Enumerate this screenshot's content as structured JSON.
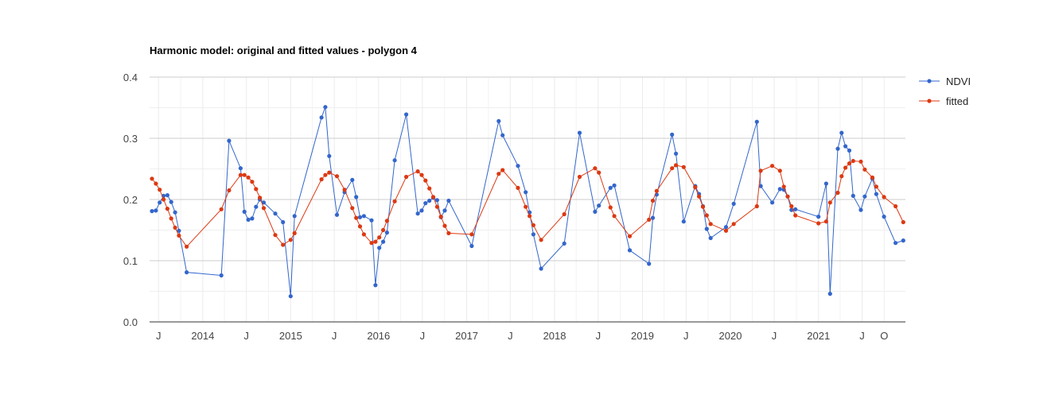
{
  "chart_data": {
    "type": "line",
    "title": "Harmonic model: original and fitted values - polygon 4",
    "xlabel": "",
    "ylabel": "",
    "xlim": [
      "2013-05-25",
      "2021-12-28"
    ],
    "ylim": [
      0,
      0.4
    ],
    "yticks": [
      "0.0",
      "0.1",
      "0.2",
      "0.3",
      "0.4"
    ],
    "xticks": [
      {
        "date": "2013-07-01",
        "label": "J"
      },
      {
        "date": "2014-01-01",
        "label": "2014"
      },
      {
        "date": "2014-07-01",
        "label": "J"
      },
      {
        "date": "2015-01-01",
        "label": "2015"
      },
      {
        "date": "2015-07-01",
        "label": "J"
      },
      {
        "date": "2016-01-01",
        "label": "2016"
      },
      {
        "date": "2016-07-01",
        "label": "J"
      },
      {
        "date": "2017-01-01",
        "label": "2017"
      },
      {
        "date": "2017-07-01",
        "label": "J"
      },
      {
        "date": "2018-01-01",
        "label": "2018"
      },
      {
        "date": "2018-07-01",
        "label": "J"
      },
      {
        "date": "2019-01-01",
        "label": "2019"
      },
      {
        "date": "2019-07-01",
        "label": "J"
      },
      {
        "date": "2020-01-01",
        "label": "2020"
      },
      {
        "date": "2020-07-01",
        "label": "J"
      },
      {
        "date": "2021-01-01",
        "label": "2021"
      },
      {
        "date": "2021-07-01",
        "label": "J"
      },
      {
        "date": "2021-10-01",
        "label": "O"
      }
    ],
    "grid": true,
    "legend_position": "right",
    "series": [
      {
        "name": "NDVI",
        "color": "#3366cc",
        "points": [
          [
            "2013-06-04",
            0.181
          ],
          [
            "2013-06-20",
            0.182
          ],
          [
            "2013-07-06",
            0.195
          ],
          [
            "2013-07-22",
            0.206
          ],
          [
            "2013-08-07",
            0.207
          ],
          [
            "2013-08-23",
            0.196
          ],
          [
            "2013-09-08",
            0.179
          ],
          [
            "2013-09-24",
            0.149
          ],
          [
            "2013-10-26",
            0.081
          ],
          [
            "2014-03-19",
            0.076
          ],
          [
            "2014-04-20",
            0.296
          ],
          [
            "2014-06-07",
            0.251
          ],
          [
            "2014-06-23",
            0.18
          ],
          [
            "2014-07-09",
            0.167
          ],
          [
            "2014-07-25",
            0.169
          ],
          [
            "2014-08-10",
            0.188
          ],
          [
            "2014-08-26",
            0.2
          ],
          [
            "2014-09-11",
            0.195
          ],
          [
            "2014-10-29",
            0.177
          ],
          [
            "2014-11-30",
            0.163
          ],
          [
            "2015-01-01",
            0.042
          ],
          [
            "2015-01-17",
            0.173
          ],
          [
            "2015-05-09",
            0.334
          ],
          [
            "2015-05-25",
            0.351
          ],
          [
            "2015-06-10",
            0.271
          ],
          [
            "2015-07-12",
            0.175
          ],
          [
            "2015-08-13",
            0.212
          ],
          [
            "2015-09-14",
            0.232
          ],
          [
            "2015-09-30",
            0.204
          ],
          [
            "2015-10-16",
            0.171
          ],
          [
            "2015-11-01",
            0.173
          ],
          [
            "2015-12-03",
            0.166
          ],
          [
            "2015-12-19",
            0.06
          ],
          [
            "2016-01-04",
            0.121
          ],
          [
            "2016-01-20",
            0.131
          ],
          [
            "2016-02-05",
            0.146
          ],
          [
            "2016-03-08",
            0.264
          ],
          [
            "2016-04-25",
            0.339
          ],
          [
            "2016-06-12",
            0.177
          ],
          [
            "2016-06-28",
            0.182
          ],
          [
            "2016-07-14",
            0.194
          ],
          [
            "2016-07-30",
            0.198
          ],
          [
            "2016-08-15",
            0.203
          ],
          [
            "2016-08-31",
            0.199
          ],
          [
            "2016-09-16",
            0.171
          ],
          [
            "2016-10-02",
            0.182
          ],
          [
            "2016-10-18",
            0.198
          ],
          [
            "2017-01-22",
            0.124
          ],
          [
            "2017-05-14",
            0.328
          ],
          [
            "2017-05-30",
            0.305
          ],
          [
            "2017-08-02",
            0.255
          ],
          [
            "2017-09-03",
            0.212
          ],
          [
            "2017-09-19",
            0.179
          ],
          [
            "2017-10-05",
            0.143
          ],
          [
            "2017-11-06",
            0.087
          ],
          [
            "2018-02-10",
            0.128
          ],
          [
            "2018-04-15",
            0.309
          ],
          [
            "2018-06-18",
            0.18
          ],
          [
            "2018-07-04",
            0.19
          ],
          [
            "2018-08-21",
            0.219
          ],
          [
            "2018-09-06",
            0.223
          ],
          [
            "2018-11-09",
            0.117
          ],
          [
            "2019-01-28",
            0.095
          ],
          [
            "2019-02-13",
            0.17
          ],
          [
            "2019-03-01",
            0.208
          ],
          [
            "2019-05-04",
            0.306
          ],
          [
            "2019-05-20",
            0.275
          ],
          [
            "2019-06-21",
            0.164
          ],
          [
            "2019-08-08",
            0.222
          ],
          [
            "2019-08-24",
            0.209
          ],
          [
            "2019-09-09",
            0.189
          ],
          [
            "2019-09-25",
            0.152
          ],
          [
            "2019-10-11",
            0.137
          ],
          [
            "2019-12-14",
            0.155
          ],
          [
            "2020-01-15",
            0.193
          ],
          [
            "2020-04-20",
            0.327
          ],
          [
            "2020-05-06",
            0.222
          ],
          [
            "2020-06-23",
            0.195
          ],
          [
            "2020-07-25",
            0.217
          ],
          [
            "2020-08-10",
            0.216
          ],
          [
            "2020-08-26",
            0.205
          ],
          [
            "2020-09-11",
            0.183
          ],
          [
            "2020-09-27",
            0.184
          ],
          [
            "2021-01-01",
            0.172
          ],
          [
            "2021-02-02",
            0.226
          ],
          [
            "2021-02-18",
            0.046
          ],
          [
            "2021-03-22",
            0.283
          ],
          [
            "2021-04-07",
            0.309
          ],
          [
            "2021-04-23",
            0.287
          ],
          [
            "2021-05-09",
            0.28
          ],
          [
            "2021-05-25",
            0.206
          ],
          [
            "2021-06-26",
            0.183
          ],
          [
            "2021-07-12",
            0.205
          ],
          [
            "2021-08-13",
            0.234
          ],
          [
            "2021-08-29",
            0.209
          ],
          [
            "2021-09-30",
            0.172
          ],
          [
            "2021-11-17",
            0.129
          ],
          [
            "2021-12-19",
            0.133
          ]
        ]
      },
      {
        "name": "fitted",
        "color": "#dc3912",
        "points": [
          [
            "2013-06-04",
            0.234
          ],
          [
            "2013-06-20",
            0.226
          ],
          [
            "2013-07-06",
            0.216
          ],
          [
            "2013-07-22",
            0.2
          ],
          [
            "2013-08-07",
            0.185
          ],
          [
            "2013-08-23",
            0.169
          ],
          [
            "2013-09-08",
            0.154
          ],
          [
            "2013-09-24",
            0.141
          ],
          [
            "2013-10-26",
            0.123
          ],
          [
            "2014-03-19",
            0.184
          ],
          [
            "2014-04-20",
            0.215
          ],
          [
            "2014-06-07",
            0.24
          ],
          [
            "2014-06-23",
            0.24
          ],
          [
            "2014-07-09",
            0.236
          ],
          [
            "2014-07-25",
            0.229
          ],
          [
            "2014-08-10",
            0.217
          ],
          [
            "2014-08-26",
            0.203
          ],
          [
            "2014-09-11",
            0.186
          ],
          [
            "2014-10-29",
            0.142
          ],
          [
            "2014-11-30",
            0.126
          ],
          [
            "2015-01-01",
            0.134
          ],
          [
            "2015-01-17",
            0.145
          ],
          [
            "2015-05-09",
            0.233
          ],
          [
            "2015-05-25",
            0.24
          ],
          [
            "2015-06-10",
            0.244
          ],
          [
            "2015-07-12",
            0.238
          ],
          [
            "2015-08-13",
            0.216
          ],
          [
            "2015-09-14",
            0.186
          ],
          [
            "2015-09-30",
            0.17
          ],
          [
            "2015-10-16",
            0.156
          ],
          [
            "2015-11-01",
            0.143
          ],
          [
            "2015-12-03",
            0.129
          ],
          [
            "2015-12-19",
            0.131
          ],
          [
            "2016-01-04",
            0.138
          ],
          [
            "2016-01-20",
            0.15
          ],
          [
            "2016-02-05",
            0.165
          ],
          [
            "2016-03-08",
            0.197
          ],
          [
            "2016-04-25",
            0.237
          ],
          [
            "2016-06-12",
            0.246
          ],
          [
            "2016-06-28",
            0.24
          ],
          [
            "2016-07-14",
            0.231
          ],
          [
            "2016-07-30",
            0.218
          ],
          [
            "2016-08-15",
            0.204
          ],
          [
            "2016-08-31",
            0.188
          ],
          [
            "2016-09-16",
            0.172
          ],
          [
            "2016-10-02",
            0.157
          ],
          [
            "2016-10-18",
            0.145
          ],
          [
            "2017-01-22",
            0.143
          ],
          [
            "2017-05-14",
            0.242
          ],
          [
            "2017-05-30",
            0.248
          ],
          [
            "2017-08-02",
            0.219
          ],
          [
            "2017-09-03",
            0.188
          ],
          [
            "2017-09-19",
            0.173
          ],
          [
            "2017-10-05",
            0.158
          ],
          [
            "2017-11-06",
            0.134
          ],
          [
            "2018-02-10",
            0.176
          ],
          [
            "2018-04-15",
            0.237
          ],
          [
            "2018-06-18",
            0.251
          ],
          [
            "2018-07-04",
            0.244
          ],
          [
            "2018-08-21",
            0.187
          ],
          [
            "2018-09-06",
            0.173
          ],
          [
            "2018-11-09",
            0.14
          ],
          [
            "2019-01-28",
            0.167
          ],
          [
            "2019-02-13",
            0.198
          ],
          [
            "2019-03-01",
            0.214
          ],
          [
            "2019-05-04",
            0.251
          ],
          [
            "2019-05-20",
            0.256
          ],
          [
            "2019-06-21",
            0.253
          ],
          [
            "2019-08-08",
            0.22
          ],
          [
            "2019-08-24",
            0.205
          ],
          [
            "2019-09-09",
            0.188
          ],
          [
            "2019-09-25",
            0.174
          ],
          [
            "2019-10-11",
            0.16
          ],
          [
            "2019-12-14",
            0.149
          ],
          [
            "2020-01-15",
            0.16
          ],
          [
            "2020-04-20",
            0.189
          ],
          [
            "2020-05-06",
            0.247
          ],
          [
            "2020-06-23",
            0.255
          ],
          [
            "2020-07-25",
            0.247
          ],
          [
            "2020-08-10",
            0.221
          ],
          [
            "2020-08-26",
            0.205
          ],
          [
            "2020-09-11",
            0.189
          ],
          [
            "2020-09-27",
            0.174
          ],
          [
            "2021-01-01",
            0.161
          ],
          [
            "2021-02-02",
            0.164
          ],
          [
            "2021-02-18",
            0.195
          ],
          [
            "2021-03-22",
            0.211
          ],
          [
            "2021-04-07",
            0.238
          ],
          [
            "2021-04-23",
            0.252
          ],
          [
            "2021-05-09",
            0.259
          ],
          [
            "2021-05-25",
            0.263
          ],
          [
            "2021-06-26",
            0.262
          ],
          [
            "2021-07-12",
            0.249
          ],
          [
            "2021-08-13",
            0.236
          ],
          [
            "2021-08-29",
            0.221
          ],
          [
            "2021-09-30",
            0.204
          ],
          [
            "2021-11-17",
            0.189
          ],
          [
            "2021-12-19",
            0.163
          ]
        ]
      }
    ]
  }
}
